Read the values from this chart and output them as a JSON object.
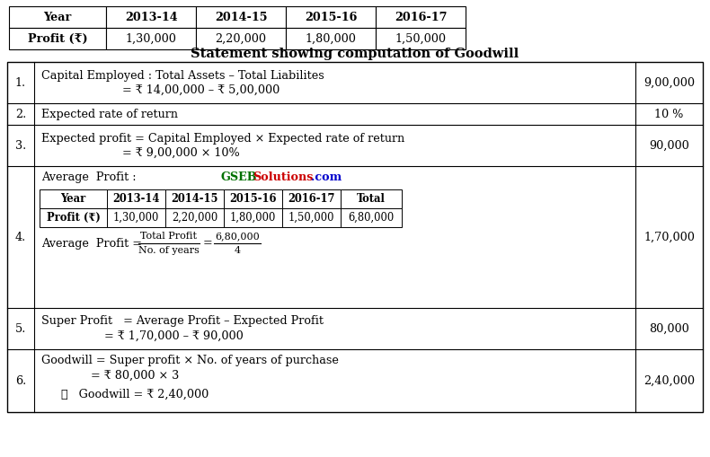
{
  "top_table": {
    "headers": [
      "Year",
      "2013-14",
      "2014-15",
      "2015-16",
      "2016-17"
    ],
    "row": [
      "Profit (₹)",
      "1,30,000",
      "2,20,000",
      "1,80,000",
      "1,50,000"
    ]
  },
  "main_title": "Statement showing computation of Goodwill",
  "rows": [
    {
      "num": "1.",
      "desc_line1": "Capital Employed : Total Assets – Total Liabilites",
      "desc_line2": "= ₹ 14,00,000 – ₹ 5,00,000",
      "value": "9,00,000"
    },
    {
      "num": "2.",
      "desc_line1": "Expected rate of return",
      "value": "10 %"
    },
    {
      "num": "3.",
      "desc_line1": "Expected profit = Capital Employed × Expected rate of return",
      "desc_line2": "= ₹ 9,00,000 × 10%",
      "value": "90,000"
    },
    {
      "num": "4.",
      "desc_line1": "Average  Profit :",
      "inner_headers": [
        "Year",
        "2013-14",
        "2014-15",
        "2015-16",
        "2016-17",
        "Total"
      ],
      "inner_row": [
        "Profit (₹)",
        "1,30,000",
        "2,20,000",
        "1,80,000",
        "1,50,000",
        "6,80,000"
      ],
      "formula_left": "Average  Profit = ",
      "formula_num": "Total Profit",
      "formula_den": "No. of years",
      "formula_eq": "=",
      "formula_rhs_num": "6,80,000",
      "formula_rhs_den": "4",
      "value": "1,70,000"
    },
    {
      "num": "5.",
      "desc_line1": "Super Profit   = Average Profit – Expected Profit",
      "desc_line2": "= ₹ 1,70,000 – ₹ 90,000",
      "value": "80,000"
    },
    {
      "num": "6.",
      "desc_line1": "Goodwill = Super profit × No. of years of purchase",
      "desc_line2": "= ₹ 80,000 × 3",
      "desc_line3": "∴   Goodwill = ₹ 2,40,000",
      "value": "2,40,000"
    }
  ],
  "gseb_green": "#007000",
  "gseb_red": "#cc0000",
  "gseb_blue": "#0000cc",
  "bg_color": "#ffffff",
  "font_size": 9.2,
  "small_font": 8.0,
  "title_font_size": 10.5
}
